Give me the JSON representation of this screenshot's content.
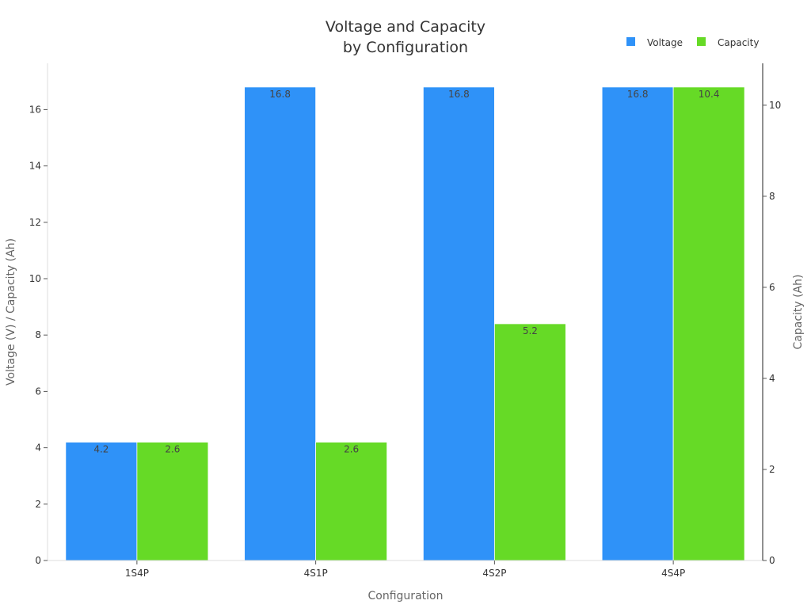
{
  "chart_data": {
    "type": "bar",
    "title": "Voltage and Capacity\nby Configuration",
    "xlabel": "Configuration",
    "ylabel": "Voltage (V) / Capacity (Ah)",
    "ylabel_right": "Capacity (Ah)",
    "categories": [
      "1S4P",
      "4S1P",
      "4S2P",
      "4S4P"
    ],
    "series": [
      {
        "name": "Voltage",
        "values": [
          4.2,
          16.8,
          16.8,
          16.8
        ],
        "color": "#2f92f8",
        "axis": "left"
      },
      {
        "name": "Capacity",
        "values": [
          2.6,
          2.6,
          5.2,
          10.4
        ],
        "color": "#66da26",
        "axis": "right"
      }
    ],
    "ylim": [
      0,
      17.64
    ],
    "ylim_right": [
      0,
      10.92
    ],
    "yticks": [
      0,
      2,
      4,
      6,
      8,
      10,
      12,
      14,
      16
    ],
    "yticks_right": [
      0,
      2,
      4,
      6,
      8,
      10
    ],
    "grid": false,
    "legend": "top-right"
  }
}
